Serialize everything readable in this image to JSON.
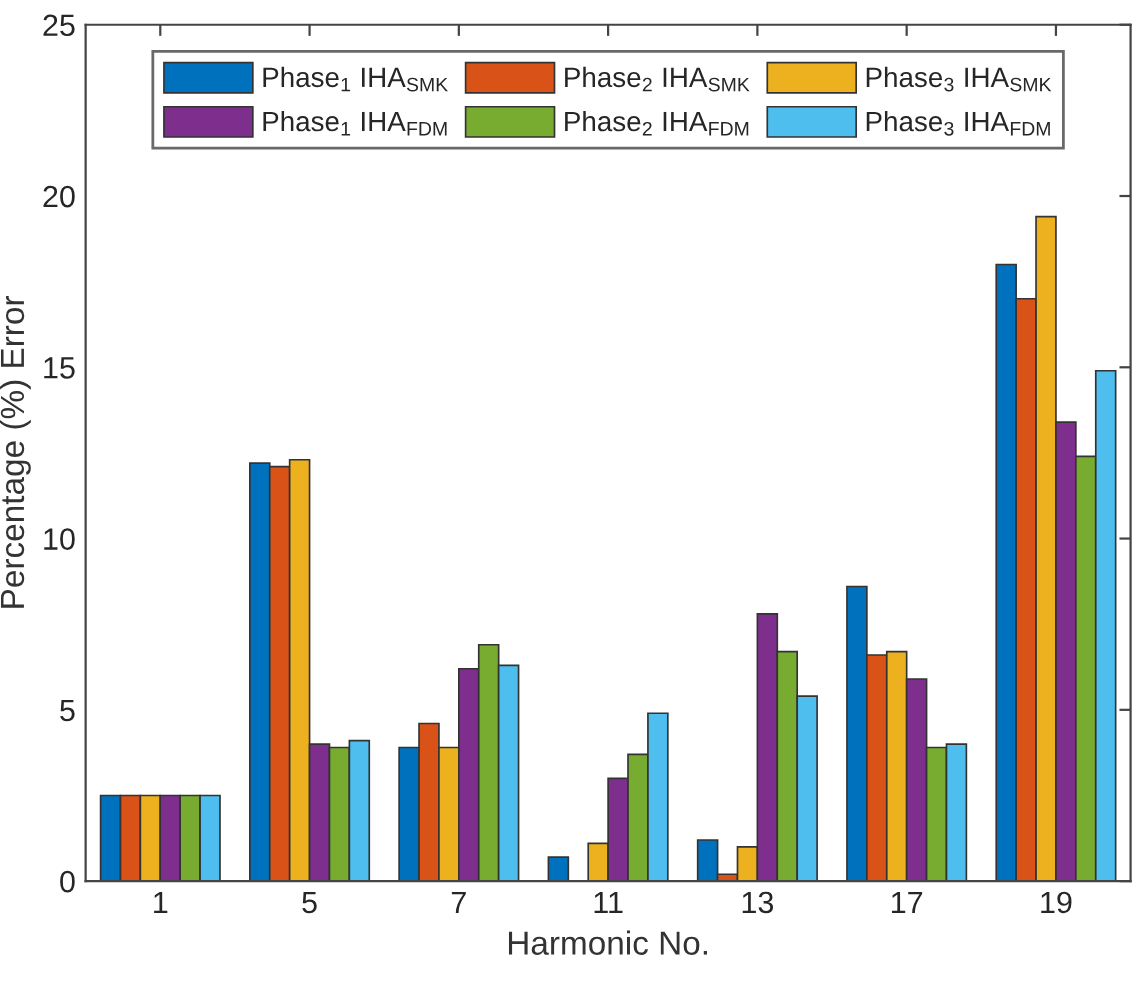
{
  "chart_data": {
    "type": "bar",
    "xlabel": "Harmonic No.",
    "ylabel": "Percentage (%) Error",
    "categories": [
      "1",
      "5",
      "7",
      "11",
      "13",
      "17",
      "19"
    ],
    "ylim": [
      0,
      25
    ],
    "yticks": [
      0,
      5,
      10,
      15,
      20,
      25
    ],
    "grid": false,
    "legend": "top",
    "series": [
      {
        "name": "Phase$_{1}$ IHA$_{SMK}$",
        "color": "#0072bd",
        "values": [
          2.5,
          12.2,
          3.9,
          0.7,
          1.2,
          8.6,
          18.0
        ]
      },
      {
        "name": "Phase$_{2}$ IHA$_{SMK}$",
        "color": "#d95319",
        "values": [
          2.5,
          12.1,
          4.6,
          0.0,
          0.2,
          6.6,
          17.0
        ]
      },
      {
        "name": "Phase$_{3}$ IHA$_{SMK}$",
        "color": "#edb120",
        "values": [
          2.5,
          12.3,
          3.9,
          1.1,
          1.0,
          6.7,
          19.4
        ]
      },
      {
        "name": "Phase$_{1}$ IHA$_{FDM}$",
        "color": "#7e2f8e",
        "values": [
          2.5,
          4.0,
          6.2,
          3.0,
          7.8,
          5.9,
          13.4
        ]
      },
      {
        "name": "Phase$_{2}$ IHA$_{FDM}$",
        "color": "#77ac30",
        "values": [
          2.5,
          3.9,
          6.9,
          3.7,
          6.7,
          3.9,
          12.4
        ]
      },
      {
        "name": "Phase$_{3}$ IHA$_{FDM}$",
        "color": "#4dbeee",
        "values": [
          2.5,
          4.1,
          6.3,
          4.9,
          5.4,
          4.0,
          14.9
        ]
      }
    ]
  }
}
